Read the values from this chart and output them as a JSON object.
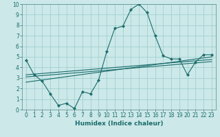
{
  "xlabel": "Humidex (Indice chaleur)",
  "bg_color": "#cce8e8",
  "grid_color": "#99cccc",
  "line_color": "#1a6b6b",
  "spine_color": "#558888",
  "xlim": [
    -0.5,
    23.5
  ],
  "ylim": [
    0,
    10
  ],
  "xticks": [
    0,
    1,
    2,
    3,
    4,
    5,
    6,
    7,
    8,
    9,
    10,
    11,
    12,
    13,
    14,
    15,
    16,
    17,
    18,
    19,
    20,
    21,
    22,
    23
  ],
  "yticks": [
    0,
    1,
    2,
    3,
    4,
    5,
    6,
    7,
    8,
    9,
    10
  ],
  "wavy_x": [
    0,
    1,
    2,
    3,
    4,
    5,
    6,
    7,
    8,
    9,
    10,
    11,
    12,
    13,
    14,
    15,
    16,
    17,
    18,
    19,
    20,
    21,
    22,
    23
  ],
  "wavy_y": [
    4.7,
    3.3,
    2.7,
    1.5,
    0.4,
    0.6,
    0.1,
    1.7,
    1.5,
    2.8,
    5.5,
    7.7,
    7.9,
    9.5,
    10.0,
    9.2,
    7.0,
    5.1,
    4.8,
    4.8,
    3.3,
    4.5,
    5.2,
    5.2
  ],
  "line1_x": [
    0,
    23
  ],
  "line1_y": [
    3.3,
    4.75
  ],
  "line2_x": [
    0,
    23
  ],
  "line2_y": [
    3.1,
    4.55
  ],
  "line3_x": [
    0,
    23
  ],
  "line3_y": [
    2.6,
    5.0
  ],
  "xlabel_fontsize": 6.5,
  "tick_fontsize": 5.5,
  "lw": 0.8,
  "ms": 2.2
}
